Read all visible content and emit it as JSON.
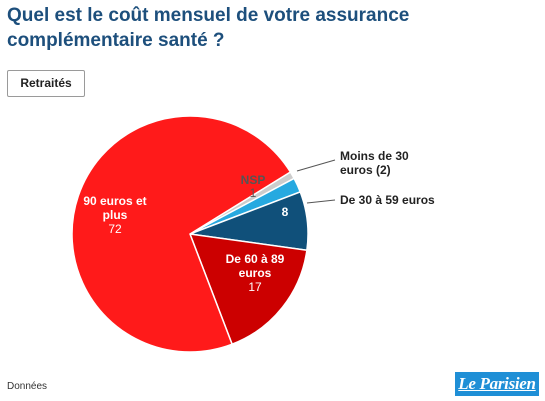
{
  "header": {
    "title": "Quel est le coût mensuel de votre assurance complémentaire santé ?",
    "tab_label": "Retraités"
  },
  "footer": {
    "source_label": "Données"
  },
  "logo": {
    "text": "Le Parisien"
  },
  "colors": {
    "title": "#1d4f7c",
    "nsp": "#cccccc",
    "moins30": "#26a9e0",
    "30a59": "#10507a",
    "60a89": "#cc0000",
    "90plus": "#ff1a1a"
  },
  "chart_data": {
    "type": "pie",
    "title": "Quel est le coût mensuel de votre assurance complémentaire santé ?",
    "slices": [
      {
        "label": "NSP",
        "value": 1,
        "color": "#cccccc",
        "label_position": "inside"
      },
      {
        "label": "Moins de 30 euros (2)",
        "value": 2,
        "color": "#26a9e0",
        "label_position": "outside"
      },
      {
        "label": "De 30 à 59 euros",
        "value": 8,
        "color": "#10507a",
        "label_position": "outside"
      },
      {
        "label": "De 60 à 89 euros",
        "value": 17,
        "color": "#cc0000",
        "label_position": "inside"
      },
      {
        "label": "90 euros et plus",
        "value": 72,
        "color": "#ff1a1a",
        "label_position": "inside"
      }
    ]
  }
}
